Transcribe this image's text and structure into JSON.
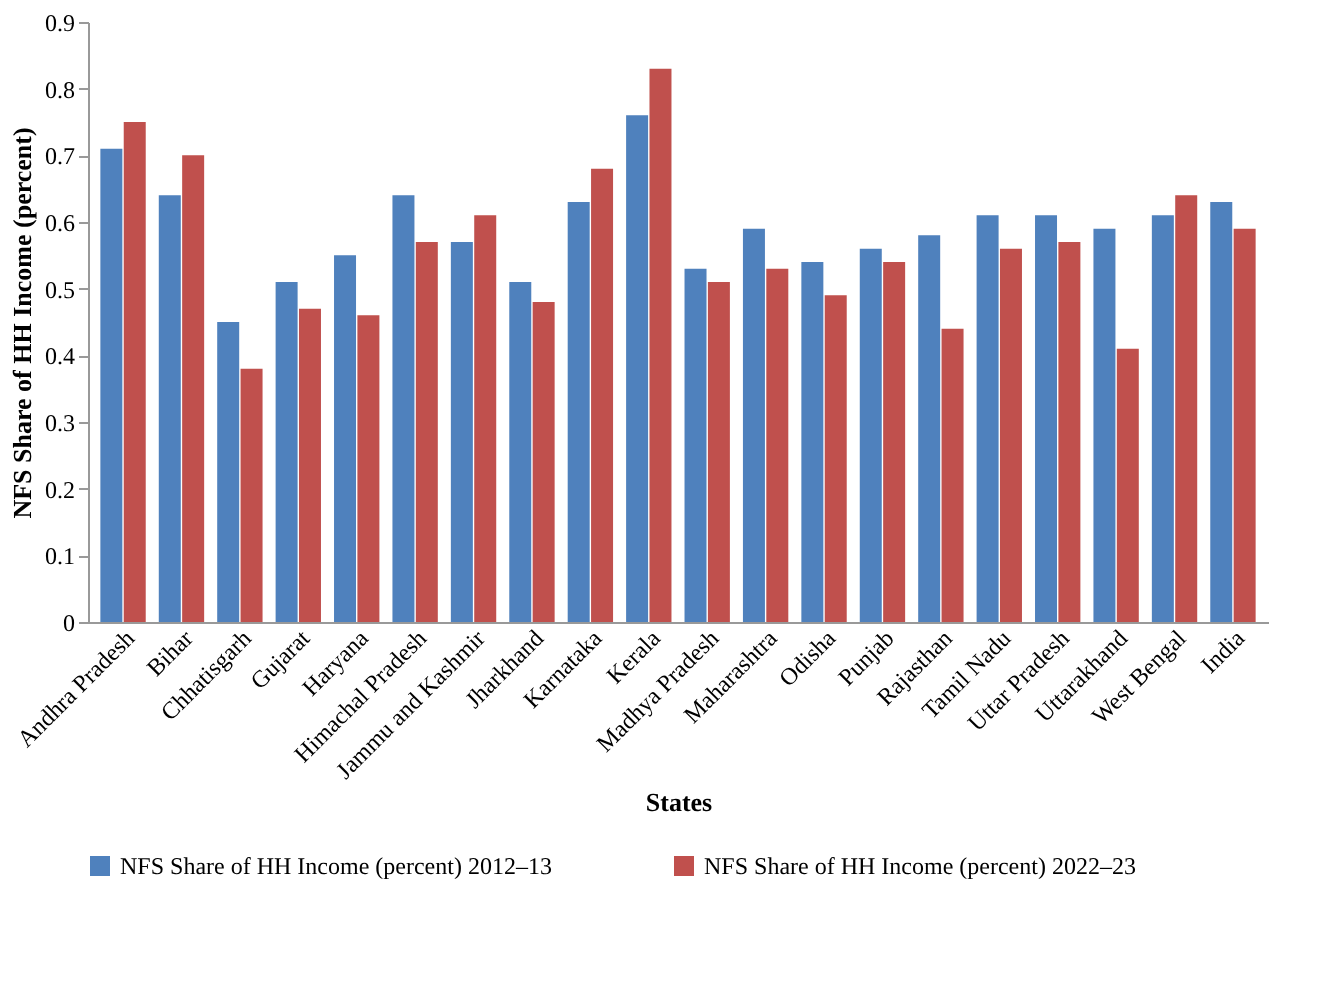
{
  "chart_data": {
    "type": "bar",
    "xlabel": "States",
    "ylabel": "NFS Share of HH Income (percent)",
    "categories": [
      "Andhra Pradesh",
      "Bihar",
      "Chhatisgarh",
      "Gujarat",
      "Haryana",
      "Himachal Pradesh",
      "Jammu and Kashmir",
      "Jharkhand",
      "Karnataka",
      "Kerala",
      "Madhya Pradesh",
      "Maharashtra",
      "Odisha",
      "Punjab",
      "Rajasthan",
      "Tamil Nadu",
      "Uttar Pradesh",
      "Uttarakhand",
      "West Bengal",
      "India"
    ],
    "series": [
      {
        "name": "NFS Share of HH Income (percent) 2012–13",
        "color": "#4f81bd",
        "values": [
          0.71,
          0.64,
          0.45,
          0.51,
          0.55,
          0.64,
          0.57,
          0.51,
          0.63,
          0.76,
          0.53,
          0.59,
          0.54,
          0.56,
          0.58,
          0.61,
          0.61,
          0.59,
          0.61,
          0.63
        ]
      },
      {
        "name": "NFS Share of HH Income (percent) 2022–23",
        "color": "#c0504d",
        "values": [
          0.75,
          0.7,
          0.38,
          0.47,
          0.46,
          0.57,
          0.61,
          0.48,
          0.68,
          0.83,
          0.51,
          0.53,
          0.49,
          0.54,
          0.44,
          0.56,
          0.57,
          0.41,
          0.64,
          0.59
        ]
      }
    ],
    "ylim": [
      0,
      0.9
    ],
    "yticks": [
      0,
      0.1,
      0.2,
      0.3,
      0.4,
      0.5,
      0.6,
      0.7,
      0.8,
      0.9
    ],
    "grid": false,
    "legend": "bottom"
  }
}
